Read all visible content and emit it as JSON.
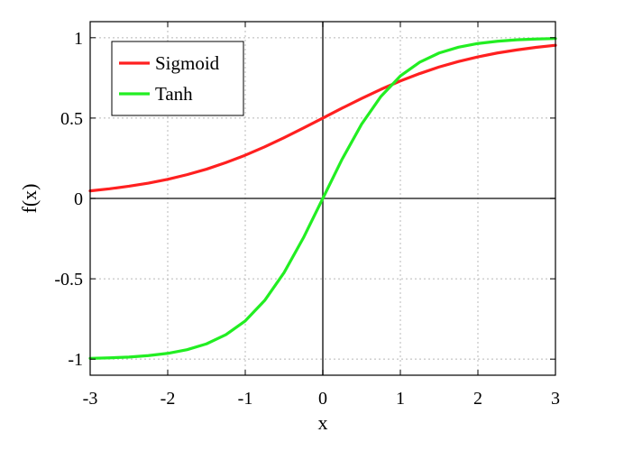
{
  "chart_data": {
    "type": "line",
    "title": "",
    "xlabel": "x",
    "ylabel": "f(x)",
    "xlim": [
      -3,
      3
    ],
    "ylim": [
      -1.1,
      1.1
    ],
    "xticks": [
      -3,
      -2,
      -1,
      0,
      1,
      2,
      3
    ],
    "xtick_labels": [
      "-3",
      "-2",
      "-1",
      "0",
      "1",
      "2",
      "3"
    ],
    "yticks": [
      -1,
      -0.5,
      0,
      0.5,
      1
    ],
    "ytick_labels": [
      "-1",
      "-0.5",
      "0",
      "0.5",
      "1"
    ],
    "grid": true,
    "legend_position": "top-left",
    "x": [
      -3,
      -2.75,
      -2.5,
      -2.25,
      -2,
      -1.75,
      -1.5,
      -1.25,
      -1,
      -0.75,
      -0.5,
      -0.25,
      0,
      0.25,
      0.5,
      0.75,
      1,
      1.25,
      1.5,
      1.75,
      2,
      2.25,
      2.5,
      2.75,
      3
    ],
    "series": [
      {
        "name": "Sigmoid",
        "color": "#ff2020",
        "values": [
          0.047,
          0.06,
          0.076,
          0.095,
          0.119,
          0.148,
          0.182,
          0.223,
          0.269,
          0.321,
          0.378,
          0.438,
          0.5,
          0.562,
          0.622,
          0.679,
          0.731,
          0.777,
          0.818,
          0.852,
          0.881,
          0.905,
          0.924,
          0.94,
          0.953
        ]
      },
      {
        "name": "Tanh",
        "color": "#22ee22",
        "values": [
          -0.995,
          -0.992,
          -0.987,
          -0.978,
          -0.964,
          -0.941,
          -0.905,
          -0.848,
          -0.762,
          -0.635,
          -0.462,
          -0.245,
          0,
          0.245,
          0.462,
          0.635,
          0.762,
          0.848,
          0.905,
          0.941,
          0.964,
          0.978,
          0.987,
          0.992,
          0.995
        ]
      }
    ]
  }
}
